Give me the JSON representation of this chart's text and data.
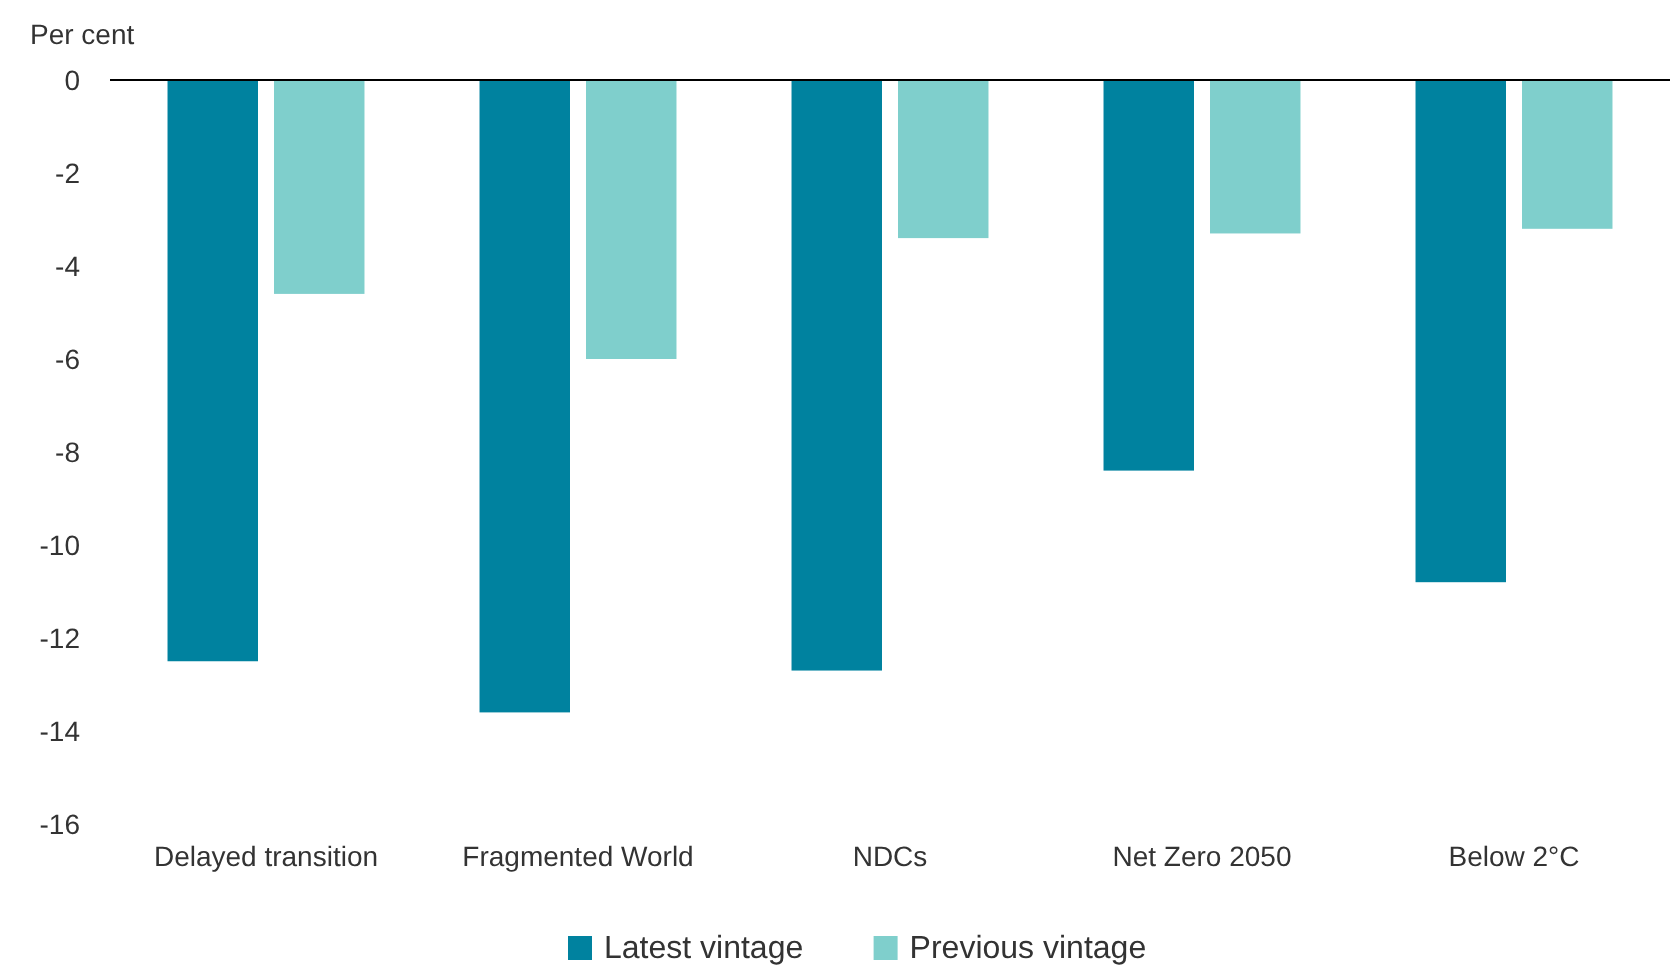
{
  "chart_data": {
    "type": "bar",
    "ylabel": "Per cent",
    "categories": [
      "Delayed transition",
      "Fragmented World",
      "NDCs",
      "Net Zero 2050",
      "Below 2°C"
    ],
    "series": [
      {
        "name": "Latest vintage",
        "color": "#00829f",
        "values": [
          -12.5,
          -13.6,
          -12.7,
          -8.4,
          -10.8
        ]
      },
      {
        "name": "Previous vintage",
        "color": "#7fcfcc",
        "values": [
          -4.6,
          -6.0,
          -3.4,
          -3.3,
          -3.2
        ]
      }
    ],
    "ylim": [
      -16,
      0
    ],
    "yticks": [
      0,
      -2,
      -4,
      -6,
      -8,
      -10,
      -12,
      -14,
      -16
    ],
    "grid": false,
    "legend": "bottom"
  }
}
